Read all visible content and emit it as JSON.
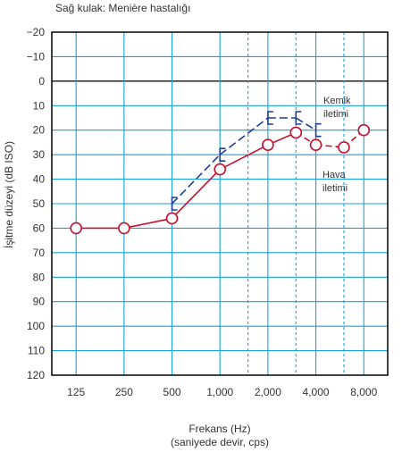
{
  "chart_data": {
    "type": "line",
    "title": "Sağ kulak: Menière hastalığı",
    "xlabel_lines": [
      "Frekans (Hz)",
      "(saniyede devir, cps)"
    ],
    "ylabel": "İşitme düzeyi (dB ISO)",
    "x_tick_labels": [
      "125",
      "250",
      "500",
      "1,000",
      "2,000",
      "4,000",
      "8,000"
    ],
    "y_ticks": [
      -20,
      -10,
      0,
      10,
      20,
      30,
      40,
      50,
      60,
      70,
      80,
      90,
      100,
      110,
      120
    ],
    "y_range": [
      -20,
      120
    ],
    "y_inverted": true,
    "x_scale": "log",
    "x_range": [
      88,
      11300
    ],
    "dashed_gridlines_x": [
      1500,
      3000,
      6000
    ],
    "zero_line": 0,
    "grid": true,
    "series": [
      {
        "name": "Kemik iletimi",
        "marker": "bracket",
        "color": "#1f3c9a",
        "line_style": "dashed",
        "points": [
          {
            "x": 500,
            "y": 50
          },
          {
            "x": 1000,
            "y": 30
          },
          {
            "x": 2000,
            "y": 15
          },
          {
            "x": 3000,
            "y": 15
          },
          {
            "x": 4000,
            "y": 20
          }
        ]
      },
      {
        "name": "Hava iletimi",
        "marker": "circle",
        "color": "#c8102e",
        "line_style": "solid-then-dashed",
        "points": [
          {
            "x": 125,
            "y": 60
          },
          {
            "x": 250,
            "y": 60
          },
          {
            "x": 500,
            "y": 56
          },
          {
            "x": 1000,
            "y": 36
          },
          {
            "x": 2000,
            "y": 26
          },
          {
            "x": 3000,
            "y": 21
          },
          {
            "x": 4000,
            "y": 26
          },
          {
            "x": 6000,
            "y": 27
          },
          {
            "x": 8000,
            "y": 20
          }
        ]
      }
    ],
    "annotations": [
      {
        "lines": [
          "Kemik",
          "iletimi"
        ],
        "series": "Kemik iletimi"
      },
      {
        "lines": [
          "Hava",
          "iletimi"
        ],
        "series": "Hava iletimi"
      }
    ]
  }
}
